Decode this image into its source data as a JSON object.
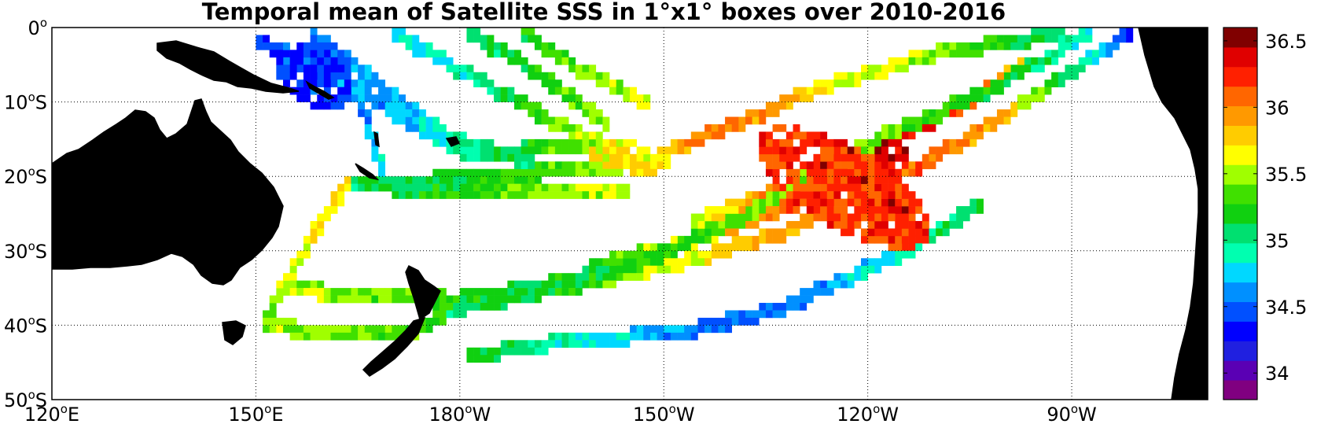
{
  "title": "Temporal mean of Satellite SSS in 1°x1° boxes over 2010-2016",
  "map": {
    "extent": {
      "lon_min": 120,
      "lon_max": 290,
      "lat_min": -50,
      "lat_max": 0
    },
    "gridlines": "dotted",
    "land_color": "#808080",
    "lon_ticks": [
      {
        "lon": 120,
        "num": "120",
        "sup": "o",
        "hemi": "E"
      },
      {
        "lon": 150,
        "num": "150",
        "sup": "o",
        "hemi": "E"
      },
      {
        "lon": 180,
        "num": "180",
        "sup": "o",
        "hemi": "W"
      },
      {
        "lon": 210,
        "num": "150",
        "sup": "o",
        "hemi": "W"
      },
      {
        "lon": 240,
        "num": "120",
        "sup": "o",
        "hemi": "W"
      },
      {
        "lon": 270,
        "num": "90",
        "sup": "o",
        "hemi": "W"
      }
    ],
    "lat_ticks": [
      {
        "lat": 0,
        "num": "0",
        "sup": "o",
        "hemi": ""
      },
      {
        "lat": -10,
        "num": "10",
        "sup": "o",
        "hemi": "S"
      },
      {
        "lat": -20,
        "num": "20",
        "sup": "o",
        "hemi": "S"
      },
      {
        "lat": -30,
        "num": "30",
        "sup": "o",
        "hemi": "S"
      },
      {
        "lat": -40,
        "num": "40",
        "sup": "o",
        "hemi": "S"
      },
      {
        "lat": -50,
        "num": "50",
        "sup": "o",
        "hemi": "S"
      }
    ]
  },
  "colorbar": {
    "min": 33.8,
    "max": 36.6,
    "tick_labels": [
      "36.5",
      "36",
      "35.5",
      "35",
      "34.5",
      "34"
    ],
    "colors": [
      "#800080",
      "#5a00b4",
      "#2020e0",
      "#0000ff",
      "#0050ff",
      "#0090ff",
      "#00d8ff",
      "#00ffb0",
      "#00e070",
      "#10d010",
      "#40e000",
      "#a0ff00",
      "#ffff00",
      "#ffcc00",
      "#ff9900",
      "#ff6600",
      "#ff2000",
      "#e00000",
      "#800000"
    ]
  },
  "tracks": [
    {
      "name": "coral-sea-track",
      "pts": [
        [
          151,
          -38
        ],
        [
          157,
          -28
        ],
        [
          163,
          -20
        ]
      ],
      "values": [
        35.45,
        35.6,
        35.75
      ]
    },
    {
      "name": "tasman-west-track",
      "pts": [
        [
          151,
          -39
        ],
        [
          158,
          -40
        ],
        [
          172,
          -40
        ],
        [
          177,
          -38
        ]
      ],
      "values": [
        35.5,
        35.45,
        35.35,
        35.3
      ]
    },
    {
      "name": "tasman-east-track",
      "pts": [
        [
          153,
          -34
        ],
        [
          164,
          -35
        ],
        [
          177,
          -35
        ]
      ],
      "values": [
        35.55,
        35.4,
        35.3
      ]
    },
    {
      "name": "nz-north-track",
      "pts": [
        [
          176,
          -36
        ],
        [
          190,
          -34
        ],
        [
          205,
          -31
        ],
        [
          220,
          -25
        ],
        [
          236,
          -16
        ],
        [
          256,
          -8
        ],
        [
          272,
          0
        ]
      ],
      "values": [
        35.2,
        35.15,
        35.2,
        35.35,
        35.5,
        35.2,
        34.9
      ]
    },
    {
      "name": "nz-long-track",
      "pts": [
        [
          177,
          -37
        ],
        [
          195,
          -34
        ],
        [
          210,
          -31
        ],
        [
          226,
          -27
        ],
        [
          240,
          -21
        ],
        [
          258,
          -12
        ],
        [
          278,
          0
        ]
      ],
      "values": [
        35.0,
        35.25,
        35.55,
        35.9,
        36.2,
        35.9,
        34.4
      ]
    },
    {
      "name": "southern-track",
      "pts": [
        [
          181,
          -43
        ],
        [
          197,
          -41
        ],
        [
          212,
          -40
        ],
        [
          226,
          -37
        ],
        [
          243,
          -30
        ],
        [
          256,
          -23
        ]
      ],
      "values": [
        35.2,
        34.85,
        34.6,
        34.5,
        34.85,
        35.15
      ]
    },
    {
      "name": "mid-track",
      "pts": [
        [
          199,
          -31
        ],
        [
          213,
          -28
        ],
        [
          228,
          -23
        ],
        [
          245,
          -16
        ]
      ],
      "values": [
        35.3,
        35.6,
        36.1,
        36.4
      ]
    },
    {
      "name": "upper-track",
      "pts": [
        [
          214,
          -25
        ],
        [
          226,
          -21
        ],
        [
          239,
          -16
        ],
        [
          252,
          -10
        ],
        [
          263,
          -4
        ]
      ],
      "values": [
        35.55,
        36.0,
        36.5,
        36.2,
        35.7
      ]
    },
    {
      "name": "high-track",
      "pts": [
        [
          209,
          -16
        ],
        [
          220,
          -12
        ],
        [
          233,
          -7
        ],
        [
          252,
          -2
        ],
        [
          268,
          0
        ]
      ],
      "values": [
        35.9,
        36.0,
        35.7,
        35.4,
        35.0
      ]
    },
    {
      "name": "west-equatorial-track",
      "pts": [
        [
          168,
          -20
        ],
        [
          183,
          -19
        ],
        [
          199,
          -18
        ],
        [
          207,
          -17
        ]
      ],
      "values": [
        35.1,
        35.2,
        35.45,
        35.65
      ]
    },
    {
      "name": "fiji-track",
      "pts": [
        [
          163,
          -20
        ],
        [
          177,
          -21
        ],
        [
          193,
          -21
        ],
        [
          204,
          -21
        ]
      ],
      "values": [
        35.05,
        35.2,
        35.45,
        35.6
      ]
    },
    {
      "name": "png-track",
      "pts": [
        [
          150,
          -1
        ],
        [
          162,
          -6
        ],
        [
          172,
          -12
        ],
        [
          181,
          -16
        ],
        [
          196,
          -15
        ],
        [
          208,
          -17
        ]
      ],
      "values": [
        34.4,
        34.6,
        34.7,
        35.0,
        35.4,
        35.7
      ]
    },
    {
      "name": "solomon-track",
      "pts": [
        [
          158,
          0
        ],
        [
          168,
          -7
        ],
        [
          178,
          -14
        ],
        [
          190,
          -17
        ]
      ],
      "values": [
        34.5,
        34.7,
        34.9,
        35.1
      ]
    },
    {
      "name": "north-diag-track",
      "pts": [
        [
          170,
          0
        ],
        [
          180,
          -5
        ],
        [
          194,
          -12
        ],
        [
          206,
          -17
        ]
      ],
      "values": [
        34.8,
        34.9,
        35.4,
        35.7
      ]
    },
    {
      "name": "north-diag-2-track",
      "pts": [
        [
          181,
          0
        ],
        [
          191,
          -5
        ],
        [
          201,
          -12
        ]
      ],
      "values": [
        35.0,
        35.2,
        35.5
      ]
    },
    {
      "name": "north-diag-3-track",
      "pts": [
        [
          189,
          0
        ],
        [
          198,
          -5
        ],
        [
          207,
          -9
        ]
      ],
      "values": [
        35.2,
        35.4,
        35.6
      ]
    },
    {
      "name": "vanuatu-track",
      "pts": [
        [
          163,
          -5
        ],
        [
          166,
          -12
        ],
        [
          168,
          -18
        ]
      ],
      "values": [
        34.5,
        34.6,
        34.8
      ]
    }
  ],
  "blobs": [
    {
      "name": "salinity-max-core",
      "lon": 239,
      "lat": -20,
      "rx": 9,
      "ry": 3,
      "angle": -30,
      "value": 36.55
    },
    {
      "name": "salinity-max-ring",
      "lon": 236,
      "lat": -21,
      "rx": 14,
      "ry": 5.5,
      "angle": -28,
      "value": 36.2
    },
    {
      "name": "east-fiji-patch",
      "lon": 205,
      "lat": -17,
      "rx": 7,
      "ry": 2,
      "angle": -5,
      "value": 35.7
    },
    {
      "name": "warm-pool-patch",
      "lon": 158,
      "lat": -6,
      "rx": 6,
      "ry": 4,
      "angle": -30,
      "value": 34.4
    }
  ]
}
